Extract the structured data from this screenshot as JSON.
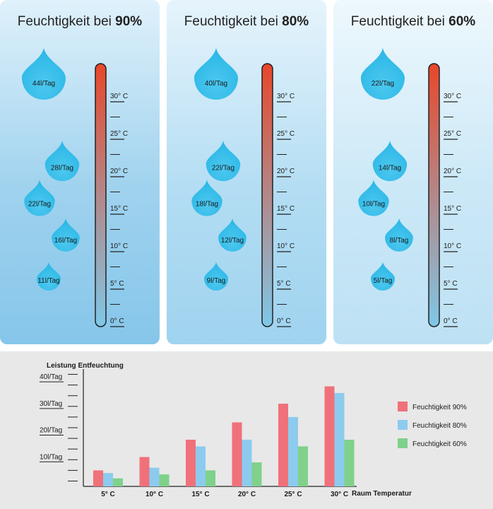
{
  "panels": [
    {
      "title_prefix": "Feuchtigkeit bei ",
      "title_value": "90%",
      "drops": [
        "44l/Tag",
        "28l/Tag",
        "22l/Tag",
        "16l/Tag",
        "11l/Tag"
      ]
    },
    {
      "title_prefix": "Feuchtigkeit bei ",
      "title_value": "80%",
      "drops": [
        "40l/Tag",
        "22l/Tag",
        "18l/Tag",
        "12l/Tag",
        "9l/Tag"
      ]
    },
    {
      "title_prefix": "Feuchtigkeit bei ",
      "title_value": "60%",
      "drops": [
        "22l/Tag",
        "14l/Tag",
        "10l/Tag",
        "8l/Tag",
        "5l/Tag"
      ]
    }
  ],
  "thermometer_labels": [
    "30° C",
    "25° C",
    "20° C",
    "15° C",
    "10° C",
    "5° C",
    "0° C"
  ],
  "colors": {
    "drop": "#29b6e6",
    "thermo_top": "#e8472a",
    "thermo_bottom": "#7ec8e8",
    "series_90": "#f0717a",
    "series_80": "#8ccbee",
    "series_60": "#7fd18b"
  },
  "chart_data": {
    "type": "bar",
    "title": "Leistung Entfeuchtung",
    "xlabel": "Raum Temperatur",
    "ylabel": "Leistung Entfeuchtung",
    "categories": [
      "5° C",
      "10° C",
      "15° C",
      "20° C",
      "25° C",
      "30° C"
    ],
    "yticks": [
      "10l/Tag",
      "20l/Tag",
      "30l/Tag",
      "40l/Tag"
    ],
    "ylim": [
      0,
      44
    ],
    "series": [
      {
        "name": "Feuchtigkeit 90%",
        "values": [
          6,
          11,
          17.5,
          24,
          31,
          37.5
        ]
      },
      {
        "name": "Feuchtigkeit 80%",
        "values": [
          5,
          7,
          15,
          17.5,
          26,
          35
        ]
      },
      {
        "name": "Feuchtigkeit 60%",
        "values": [
          3,
          4.5,
          6,
          9,
          15,
          17.5
        ]
      }
    ],
    "legend_position": "right",
    "grid": false
  }
}
